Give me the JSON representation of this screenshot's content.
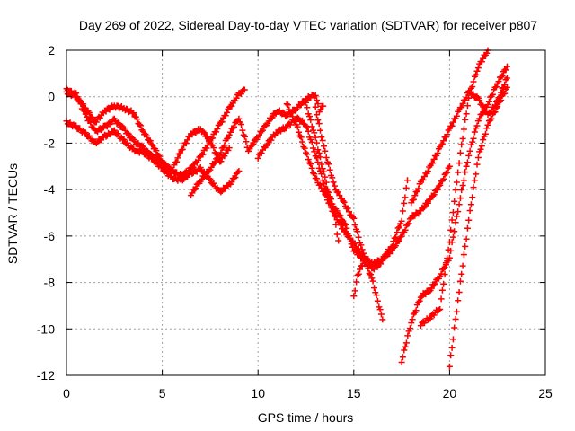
{
  "chart_data": {
    "type": "scatter",
    "title": "Day 269 of 2022, Sidereal Day-to-day VTEC variation (SDTVAR) for receiver p807",
    "xlabel": "GPS time / hours",
    "ylabel": "SDTVAR / TECUs",
    "xlim": [
      0,
      25
    ],
    "ylim": [
      -12,
      2
    ],
    "xticks": [
      0,
      5,
      10,
      15,
      20,
      25
    ],
    "yticks": [
      2,
      0,
      -2,
      -4,
      -6,
      -8,
      -10,
      -12
    ],
    "grid": true,
    "legend": "none",
    "marker": "plus",
    "color": "#ff0000",
    "series": [
      {
        "x": [
          0,
          0.5,
          1,
          1.5,
          2,
          2.5,
          3,
          3.5,
          4,
          4.5,
          5,
          5.5,
          6,
          6.5,
          7,
          7.5,
          8,
          8.5,
          9,
          9.3
        ],
        "y": [
          0.3,
          0.1,
          -0.8,
          -1.5,
          -1.3,
          -1.0,
          -1.4,
          -1.9,
          -2.2,
          -2.6,
          -2.9,
          -3.2,
          -3.4,
          -3.1,
          -2.6,
          -1.9,
          -1.2,
          -0.5,
          0.1,
          0.3
        ]
      },
      {
        "x": [
          0,
          0.5,
          1,
          1.5,
          2,
          2.5,
          3,
          3.5,
          4,
          4.5,
          5,
          5.5,
          6,
          6.5,
          7,
          7.5,
          8,
          8.5,
          9
        ],
        "y": [
          -1.1,
          -1.3,
          -1.6,
          -2.0,
          -1.7,
          -1.5,
          -1.9,
          -2.3,
          -2.4,
          -2.7,
          -3.1,
          -3.5,
          -3.6,
          -3.3,
          -3.1,
          -3.6,
          -4.1,
          -3.8,
          -3.2
        ]
      },
      {
        "x": [
          0,
          0.5,
          1,
          1.5,
          2,
          2.5,
          3,
          3.5,
          4,
          4.5,
          5,
          5.5,
          6,
          6.5,
          7,
          7.5,
          8,
          8.5
        ],
        "y": [
          0.2,
          0.0,
          -0.5,
          -1.1,
          -0.6,
          -0.4,
          -0.5,
          -0.7,
          -1.5,
          -2.1,
          -2.8,
          -3.2,
          -2.3,
          -1.6,
          -1.4,
          -1.9,
          -2.8,
          -2.2
        ]
      },
      {
        "x": [
          6.5,
          7,
          7.5,
          8,
          8.5,
          9,
          9.5,
          10,
          10.5,
          11,
          11.5,
          12,
          12.5,
          13,
          13.2,
          13.4
        ],
        "y": [
          -4.2,
          -3.6,
          -3.1,
          -2.5,
          -1.6,
          -0.9,
          -2.3,
          -1.7,
          -1.1,
          -0.6,
          -0.8,
          -0.5,
          -0.1,
          0.1,
          -0.6,
          -0.4
        ]
      },
      {
        "x": [
          10,
          10.5,
          11,
          11.5,
          12,
          12.5,
          13,
          13.5,
          14,
          14.5,
          15,
          15.5,
          16,
          16.5,
          17,
          17.5,
          17.8
        ],
        "y": [
          -2.6,
          -2.0,
          -1.5,
          -1.3,
          -0.9,
          -1.2,
          -2.5,
          -3.9,
          -4.8,
          -5.4,
          -6.6,
          -7.0,
          -7.3,
          -7.0,
          -6.4,
          -5.3,
          -3.6
        ]
      },
      {
        "x": [
          11.5,
          12,
          12.5,
          13,
          13.5,
          14,
          14.5,
          15,
          15.5,
          16,
          16.5,
          17,
          17.5,
          18,
          18.5,
          19,
          19.5,
          20
        ],
        "y": [
          -0.3,
          -1.2,
          -2.4,
          -3.5,
          -4.2,
          -5.1,
          -5.8,
          -6.3,
          -6.9,
          -7.2,
          -7.0,
          -6.6,
          -6.0,
          -5.2,
          -4.9,
          -4.4,
          -3.8,
          -3.0
        ]
      },
      {
        "x": [
          12.5,
          13,
          13.5,
          14,
          14.2
        ],
        "y": [
          -0.3,
          -1.8,
          -3.5,
          -5.2,
          -6.2
        ]
      },
      {
        "x": [
          13,
          13.5,
          14,
          14.5,
          15,
          15.5,
          16,
          16.5
        ],
        "y": [
          -0.5,
          -2.4,
          -3.9,
          -4.6,
          -5.3,
          -6.8,
          -8.0,
          -9.6
        ]
      },
      {
        "x": [
          15,
          15.2,
          15.5,
          16,
          16.4
        ],
        "y": [
          -8.6,
          -7.7,
          -7.1,
          -7.4,
          -7.2
        ]
      },
      {
        "x": [
          17.5,
          18,
          18.5,
          19,
          19.5,
          20,
          20.5,
          21,
          21.5,
          22,
          22.5,
          23
        ],
        "y": [
          -11.4,
          -9.7,
          -8.6,
          -8.3,
          -7.7,
          -6.9,
          -4.6,
          -2.5,
          -1.0,
          -0.3,
          0.6,
          1.3
        ]
      },
      {
        "x": [
          18.5,
          19,
          19.5,
          20,
          20.5,
          21,
          21.5,
          22
        ],
        "y": [
          -9.8,
          -9.5,
          -9.1,
          -6.2,
          -2.8,
          0.0,
          1.3,
          2.0
        ]
      },
      {
        "x": [
          20,
          20.5,
          21,
          21.5,
          22,
          22.5,
          23
        ],
        "y": [
          -11.6,
          -8.4,
          -5.3,
          -2.6,
          -1.2,
          -0.4,
          0.4
        ]
      },
      {
        "x": [
          18,
          18.5,
          19,
          19.5,
          20,
          20.5,
          21,
          21.5,
          22,
          22.5,
          23
        ],
        "y": [
          -4.6,
          -3.7,
          -3.0,
          -2.2,
          -1.4,
          -0.6,
          0.2,
          -0.1,
          -0.8,
          -0.2,
          0.8
        ]
      }
    ]
  }
}
